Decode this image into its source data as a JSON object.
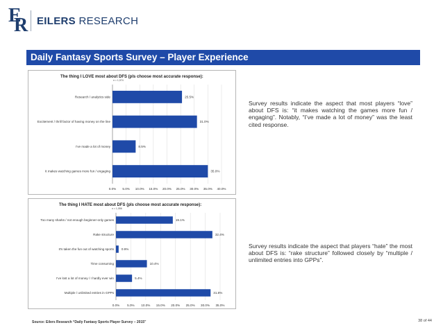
{
  "brand": {
    "name_bold": "EILERS",
    "name_rest": " RESEARCH"
  },
  "slide_title": "Daily Fantasy Sports Survey – Player Experience",
  "notes": [
    "Survey results indicate the aspect that most players “love” about DFS is: “it makes watching the games more fun / engaging”. Notably, “I’ve made a lot of money” was the least cited response.",
    "Survey results indicate the aspect that players “hate” the most about DFS is: “rake structure” followed closely by “multiple / unlimited entries into GPPs”."
  ],
  "source": "Source: Eilers Research “Daily Fantasy Sports Player Survey – 2015”",
  "page_number": "38 of 44",
  "colors": {
    "bar": "#1f4aa8",
    "title_bar": "#1f4aa8"
  },
  "chart_data": [
    {
      "type": "bar",
      "orientation": "horizontal",
      "title": "The thing I LOVE most about DFS (pls choose most accurate response):",
      "subtitle": "n = 1,074",
      "categories": [
        "Research / analytics side",
        "Excitement / thrill factor of having money on the line",
        "I've made a lot of money",
        "It makes watching games more fun / engaging"
      ],
      "values": [
        25.5,
        31.0,
        8.5,
        35.0
      ],
      "labels": [
        "25.5%",
        "31.0%",
        "8.5%",
        "35.0%"
      ],
      "xlim": [
        0,
        40
      ],
      "xticks": [
        "0.0%",
        "5.0%",
        "10.0%",
        "15.0%",
        "20.0%",
        "25.0%",
        "30.0%",
        "35.0%",
        "40.0%"
      ],
      "grid": true
    },
    {
      "type": "bar",
      "orientation": "horizontal",
      "title": "The thing I HATE most about DFS (pls choose most accurate response):",
      "subtitle": "n = 1,056",
      "categories": [
        "Too many sharks / not enough beginner-only games",
        "Rake structure",
        "It's taken the fun out of watching sports",
        "Time consuming",
        "I've lost a lot of money / I hardly ever win",
        "Multiple / unlimited entries in GPPs"
      ],
      "values": [
        19.1,
        32.4,
        0.9,
        10.4,
        5.4,
        31.8
      ],
      "labels": [
        "19.1%",
        "32.4%",
        "0.9%",
        "10.4%",
        "5.4%",
        "31.8%"
      ],
      "xlim": [
        0,
        35
      ],
      "xticks": [
        "0.0%",
        "5.0%",
        "10.0%",
        "15.0%",
        "20.0%",
        "25.0%",
        "30.0%",
        "35.0%"
      ],
      "grid": true
    }
  ]
}
